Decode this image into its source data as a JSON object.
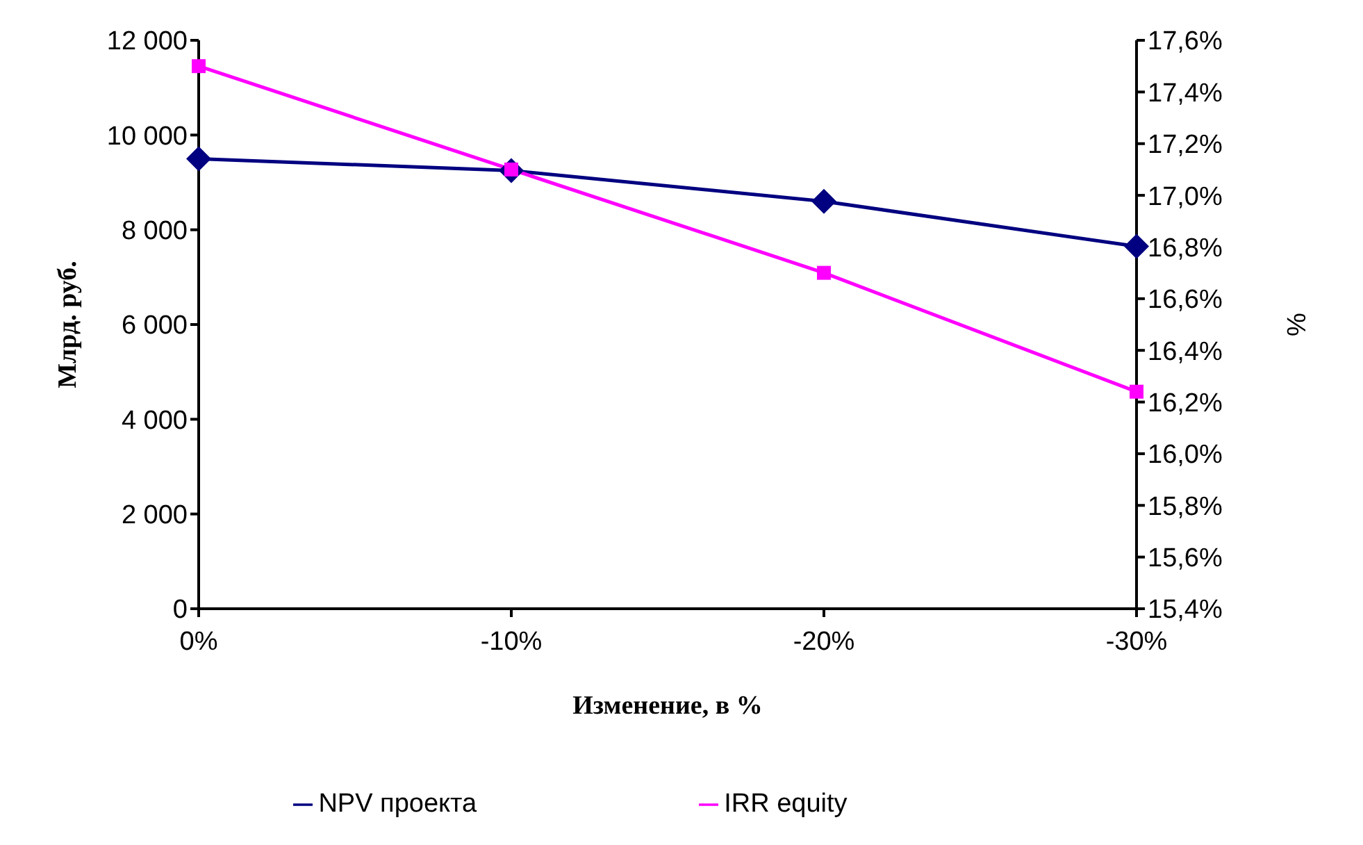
{
  "chart_data": {
    "type": "line",
    "xlabel": "Изменение, в %",
    "ylabel": "Млрд. руб.",
    "y2label": "%",
    "categories": [
      "0%",
      "-10%",
      "-20%",
      "-30%"
    ],
    "series": [
      {
        "name": "NPV проекта",
        "color": "#000080",
        "values": [
          9500,
          9250,
          8600,
          7650
        ],
        "marker": "diamond"
      },
      {
        "name": "IRR equity",
        "color": "#ff00ff",
        "values": [
          17.5,
          17.1,
          16.7,
          16.24
        ],
        "axis": "y2",
        "marker": "square"
      }
    ],
    "ylim": [
      0,
      12000
    ],
    "yticks": [
      0,
      {
        "value": 2000,
        "label": "2 000"
      },
      {
        "value": 4000,
        "label": "4 000"
      },
      {
        "value": 6000,
        "label": "6 000"
      },
      {
        "value": 8000,
        "label": "8 000"
      },
      {
        "value": 10000,
        "label": "10 000"
      },
      {
        "value": 12000,
        "label": "12 000"
      }
    ],
    "y2lim": [
      15.4,
      17.6
    ],
    "y2ticks": [
      {
        "value": 15.4,
        "label": "15,4%"
      },
      {
        "value": 15.6,
        "label": "15,6%"
      },
      {
        "value": 15.8,
        "label": "15,8%"
      },
      {
        "value": 16.0,
        "label": "16,0%"
      },
      {
        "value": 16.2,
        "label": "16,2%"
      },
      {
        "value": 16.4,
        "label": "16,4%"
      },
      {
        "value": 16.6,
        "label": "16,6%"
      },
      {
        "value": 16.8,
        "label": "16,8%"
      },
      {
        "value": 17.0,
        "label": "17,0%"
      },
      {
        "value": 17.2,
        "label": "17,2%"
      },
      {
        "value": 17.4,
        "label": "17,4%"
      },
      {
        "value": 17.6,
        "label": "17,6%"
      }
    ],
    "grid": false,
    "legend": "bottom",
    "line_style": "solid"
  }
}
